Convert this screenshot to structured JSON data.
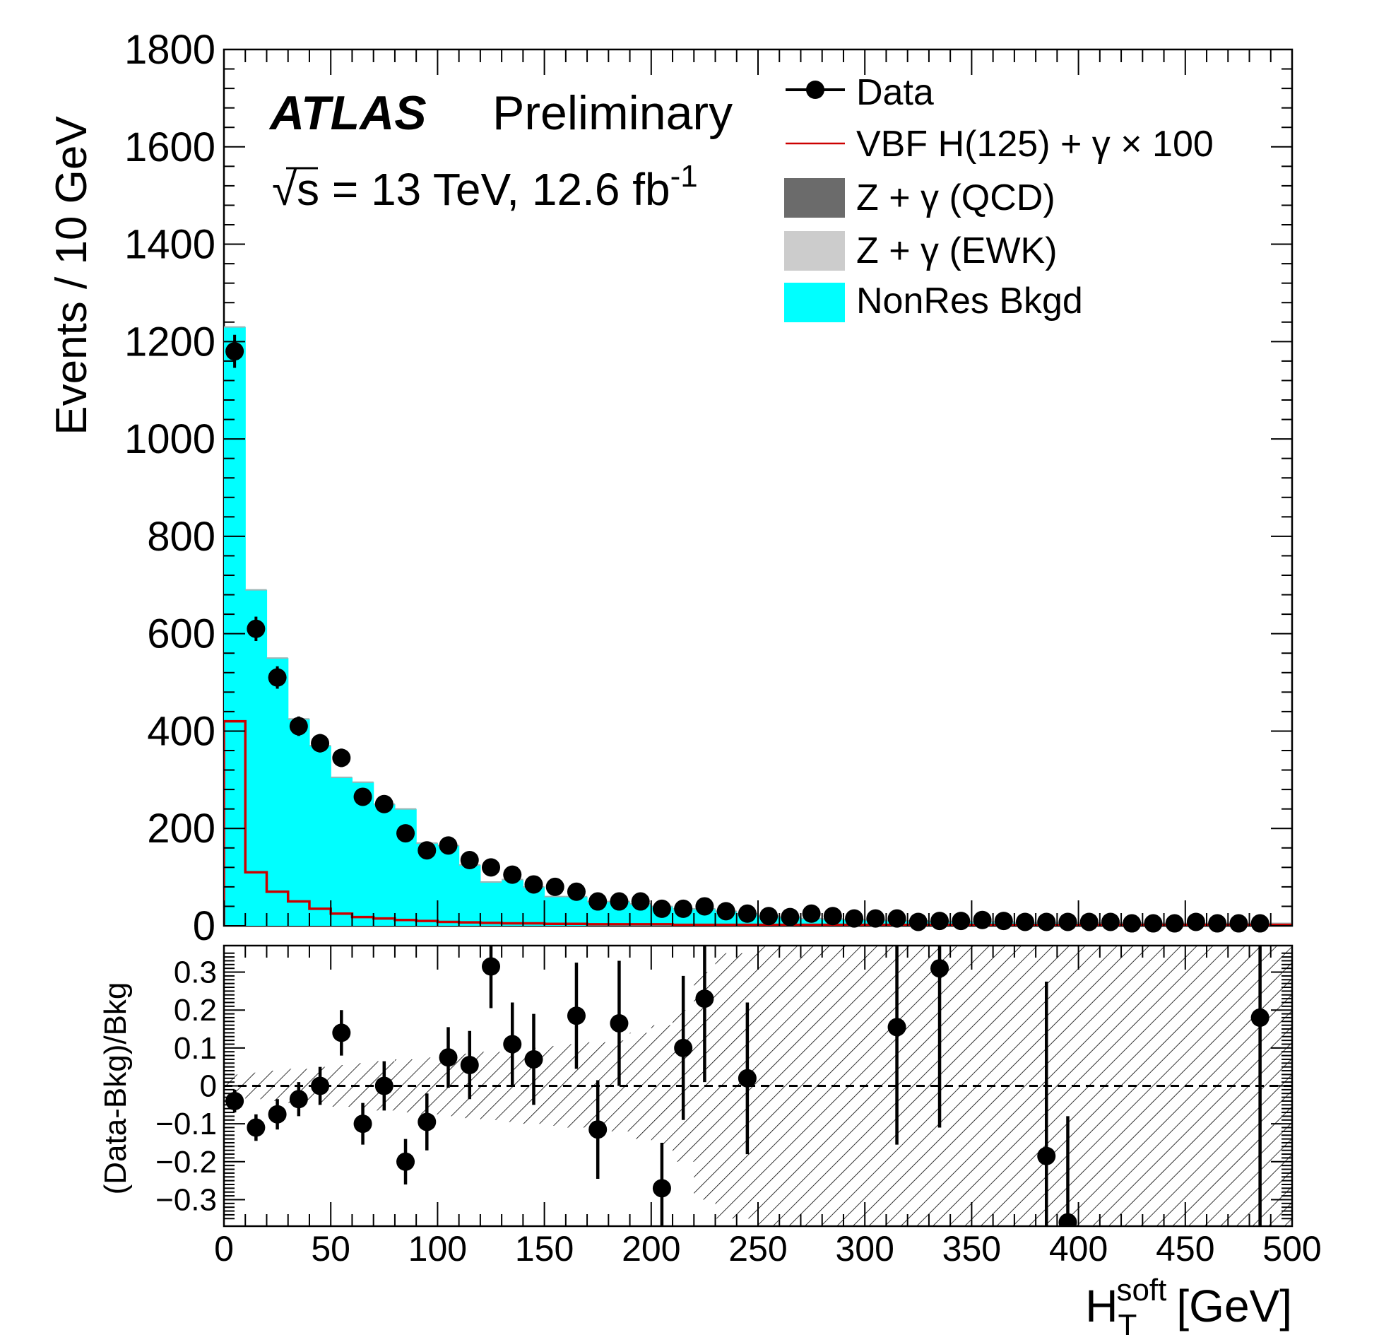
{
  "chart_data": [
    {
      "type": "bar",
      "panel": "main",
      "ylabel": "Events / 10 GeV",
      "ylim": [
        0,
        1800
      ],
      "yticks": [
        "0",
        "200",
        "400",
        "600",
        "800",
        "1000",
        "1200",
        "1400",
        "1600",
        "1800"
      ],
      "xlim": [
        0,
        500
      ],
      "bin_width": 10,
      "x": [
        5,
        15,
        25,
        35,
        45,
        55,
        65,
        75,
        85,
        95,
        105,
        115,
        125,
        135,
        145,
        155,
        165,
        175,
        185,
        195,
        205,
        215,
        225,
        235,
        245,
        255,
        265,
        275,
        285,
        295,
        305,
        315,
        325,
        335,
        345,
        355,
        365,
        375,
        385,
        395,
        405,
        415,
        425,
        435,
        445,
        455,
        465,
        475,
        485,
        495
      ],
      "series": [
        {
          "name": "NonRes Bkgd",
          "color": "#00ffff",
          "style": "filled-histogram",
          "values": [
            1230,
            690,
            550,
            425,
            370,
            305,
            295,
            250,
            240,
            170,
            165,
            125,
            90,
            95,
            80,
            60,
            60,
            50,
            50,
            45,
            40,
            35,
            35,
            30,
            25,
            20,
            18,
            15,
            14,
            13,
            12,
            11,
            10,
            9,
            9,
            8,
            8,
            7,
            7,
            7,
            6,
            6,
            6,
            5,
            5,
            5,
            5,
            5,
            5,
            5
          ]
        },
        {
          "name": "VBF H(125) + γ × 100",
          "color": "#cc0000",
          "style": "line-histogram",
          "values": [
            420,
            110,
            70,
            50,
            35,
            25,
            18,
            15,
            12,
            10,
            8,
            7,
            6,
            5,
            5,
            4,
            4,
            3,
            3,
            3,
            3,
            2,
            2,
            2,
            2,
            2,
            2,
            2,
            2,
            2,
            2,
            2,
            2,
            2,
            2,
            2,
            2,
            2,
            2,
            2,
            2,
            2,
            2,
            2,
            2,
            2,
            2,
            2,
            2,
            2
          ]
        },
        {
          "name": "Data",
          "color": "#000000",
          "style": "points",
          "values": [
            1180,
            610,
            510,
            410,
            375,
            345,
            265,
            250,
            190,
            155,
            165,
            135,
            120,
            105,
            85,
            80,
            70,
            50,
            50,
            50,
            35,
            35,
            40,
            30,
            25,
            20,
            18,
            25,
            20,
            15,
            15,
            15,
            8,
            10,
            10,
            12,
            10,
            8,
            8,
            8,
            8,
            8,
            5,
            5,
            5,
            8,
            5,
            5,
            5,
            null
          ],
          "errors": [
            34,
            25,
            23,
            20,
            19,
            19,
            16,
            16,
            14,
            12,
            13,
            12,
            11,
            10,
            9,
            9,
            8,
            7,
            7,
            7,
            6,
            6,
            6,
            5,
            5,
            4,
            4,
            5,
            4,
            4,
            4,
            4,
            3,
            3,
            3,
            3,
            3,
            3,
            3,
            3,
            3,
            3,
            2,
            2,
            2,
            3,
            2,
            2,
            2,
            0
          ]
        }
      ],
      "legend": [
        {
          "label": "Data",
          "kind": "marker"
        },
        {
          "label": "VBF H(125) + γ × 100",
          "kind": "line"
        },
        {
          "label": "Z + γ (QCD)",
          "kind": "box",
          "color": "#6b6b6b"
        },
        {
          "label": "Z + γ (EWK)",
          "kind": "box",
          "color": "#cccccc"
        },
        {
          "label": "NonRes Bkgd",
          "kind": "box",
          "color": "#00ffff"
        }
      ],
      "legend_position": "top-right",
      "annotations": {
        "atlas": "ATLAS",
        "status": "Preliminary",
        "energy": "√s = 13 TeV, 12.6 fb",
        "energy_sup": "-1"
      }
    },
    {
      "type": "scatter",
      "panel": "ratio",
      "ylabel": "(Data-Bkg)/Bkg",
      "ylim": [
        -0.37,
        0.37
      ],
      "yticks": [
        "0.3",
        "0.2",
        "0.1",
        "0",
        "−0.1",
        "−0.2",
        "−0.3"
      ],
      "ytick_values": [
        0.3,
        0.2,
        0.1,
        0,
        -0.1,
        -0.2,
        -0.3
      ],
      "xlim": [
        0,
        500
      ],
      "xticks": [
        "0",
        "50",
        "100",
        "150",
        "200",
        "250",
        "300",
        "350",
        "400",
        "450",
        "500"
      ],
      "xtick_values": [
        0,
        50,
        100,
        150,
        200,
        250,
        300,
        350,
        400,
        450,
        500
      ],
      "xlabel": "H",
      "xlabel_sup": "soft",
      "xlabel_sub": "T",
      "xlabel_unit": "[GeV]",
      "reference_line": 0,
      "points": [
        {
          "x": 5,
          "y": -0.04,
          "err": 0.03
        },
        {
          "x": 15,
          "y": -0.11,
          "err": 0.035
        },
        {
          "x": 25,
          "y": -0.075,
          "err": 0.04
        },
        {
          "x": 35,
          "y": -0.035,
          "err": 0.045
        },
        {
          "x": 45,
          "y": 0.0,
          "err": 0.05
        },
        {
          "x": 55,
          "y": 0.14,
          "err": 0.06
        },
        {
          "x": 65,
          "y": -0.1,
          "err": 0.055
        },
        {
          "x": 75,
          "y": 0.0,
          "err": 0.065
        },
        {
          "x": 85,
          "y": -0.2,
          "err": 0.06
        },
        {
          "x": 95,
          "y": -0.095,
          "err": 0.075
        },
        {
          "x": 105,
          "y": 0.075,
          "err": 0.08
        },
        {
          "x": 115,
          "y": 0.055,
          "err": 0.09
        },
        {
          "x": 125,
          "y": 0.315,
          "err": 0.11
        },
        {
          "x": 135,
          "y": 0.11,
          "err": 0.11
        },
        {
          "x": 145,
          "y": 0.07,
          "err": 0.12
        },
        {
          "x": 165,
          "y": 0.185,
          "err": 0.14
        },
        {
          "x": 175,
          "y": -0.115,
          "err": 0.13
        },
        {
          "x": 185,
          "y": 0.165,
          "err": 0.165
        },
        {
          "x": 205,
          "y": -0.27,
          "err": 0.12
        },
        {
          "x": 215,
          "y": 0.1,
          "err": 0.19
        },
        {
          "x": 225,
          "y": 0.23,
          "err": 0.22
        },
        {
          "x": 245,
          "y": 0.02,
          "err": 0.2
        },
        {
          "x": 315,
          "y": 0.155,
          "err": 0.31
        },
        {
          "x": 335,
          "y": 0.31,
          "err": 0.42
        },
        {
          "x": 385,
          "y": -0.185,
          "err": 0.46
        },
        {
          "x": 395,
          "y": -0.36,
          "err": 0.28
        },
        {
          "x": 485,
          "y": 0.18,
          "err": 0.6
        }
      ],
      "band_halfwidth": [
        0.03,
        0.035,
        0.04,
        0.045,
        0.05,
        0.055,
        0.06,
        0.065,
        0.07,
        0.075,
        0.08,
        0.085,
        0.09,
        0.095,
        0.1,
        0.105,
        0.11,
        0.115,
        0.12,
        0.14,
        0.16,
        0.2,
        0.3,
        0.35,
        0.35,
        0.4,
        0.4,
        0.4,
        0.4,
        0.4,
        0.4,
        0.4,
        0.4,
        0.4,
        0.4,
        0.4,
        0.4,
        0.4,
        0.4,
        0.4,
        0.4,
        0.4,
        0.4,
        0.4,
        0.4,
        0.4,
        0.4,
        0.4,
        0.4,
        0.4
      ]
    }
  ]
}
